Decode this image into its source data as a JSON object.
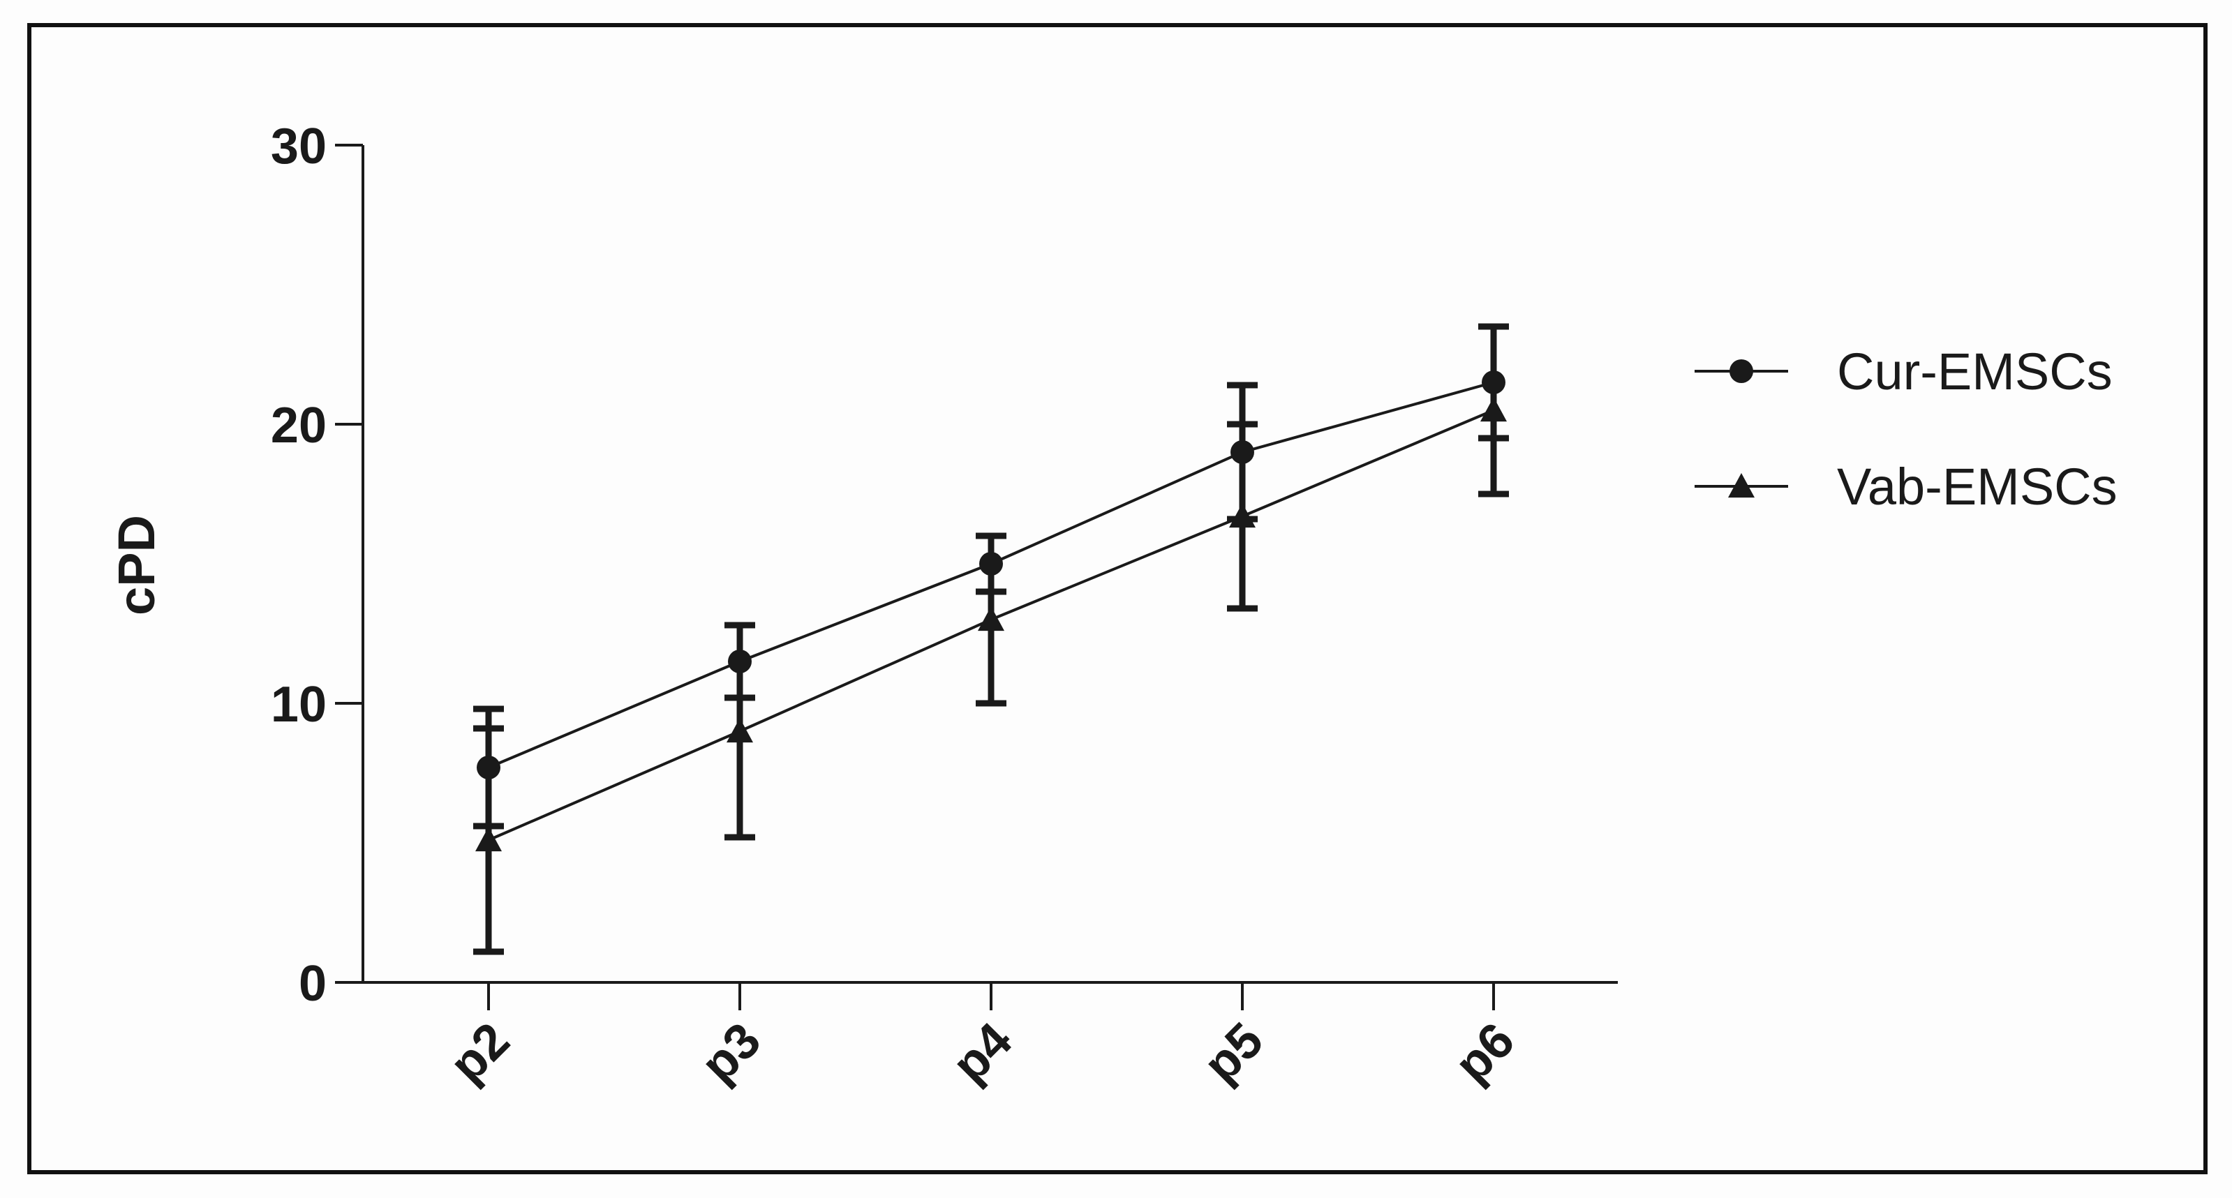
{
  "chart_data": {
    "type": "line",
    "title": "",
    "xlabel": "",
    "ylabel": "cPD",
    "categories": [
      "p2",
      "p3",
      "p4",
      "p5",
      "p6"
    ],
    "ylim": [
      0,
      30
    ],
    "yticks": [
      0,
      10,
      20,
      30
    ],
    "grid": false,
    "legend_position": "right",
    "series": [
      {
        "name": "Cur-EMSCs",
        "marker": "circle",
        "values": [
          7.7,
          11.5,
          15.0,
          19.0,
          21.5
        ],
        "error": [
          2.1,
          1.3,
          1.0,
          2.4,
          2.0
        ]
      },
      {
        "name": "Vab-EMSCs",
        "marker": "triangle",
        "values": [
          5.1,
          9.0,
          13.0,
          16.7,
          20.5
        ],
        "error": [
          4.0,
          3.8,
          3.0,
          3.3,
          3.0
        ]
      }
    ],
    "colors": {
      "ink": "#1a1a1a",
      "background": "#fdfdfd"
    }
  }
}
